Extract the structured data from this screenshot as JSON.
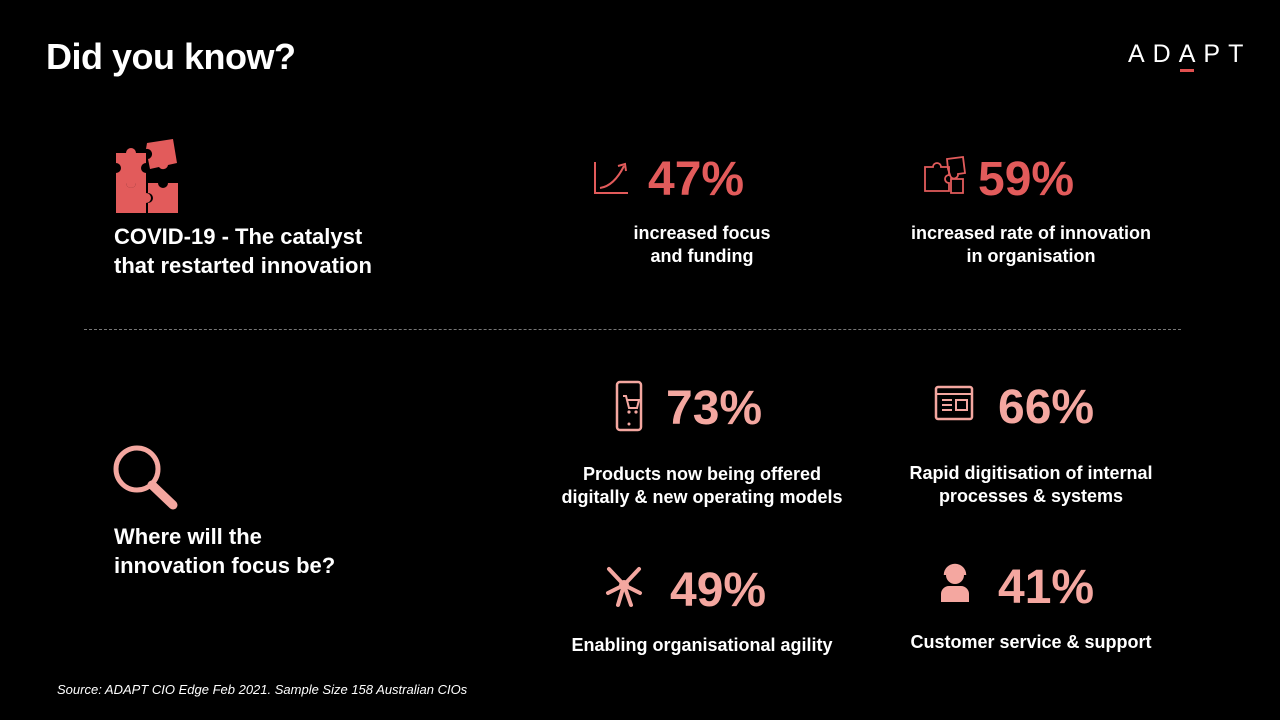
{
  "header": {
    "title": "Did you know?",
    "logo": "ADAPT"
  },
  "section1": {
    "heading_line1": "COVID-19 - The catalyst",
    "heading_line2": "that restarted innovation",
    "stats": [
      {
        "value": "47%",
        "line1": "increased focus",
        "line2": "and funding",
        "icon": "trend-chart-icon"
      },
      {
        "value": "59%",
        "line1": "increased rate of innovation",
        "line2": "in organisation",
        "icon": "puzzle-icon"
      }
    ]
  },
  "section2": {
    "heading_line1": "Where will the",
    "heading_line2": "innovation focus be?",
    "stats": [
      {
        "value": "73%",
        "line1": "Products now being offered",
        "line2": "digitally & new operating models",
        "icon": "mobile-cart-icon"
      },
      {
        "value": "66%",
        "line1": "Rapid digitisation of internal",
        "line2": "processes & systems",
        "icon": "browser-window-icon"
      },
      {
        "value": "49%",
        "line1": "Enabling organisational agility",
        "icon": "arrows-converge-icon"
      },
      {
        "value": "41%",
        "line1": "Customer service & support",
        "icon": "headset-agent-icon"
      }
    ]
  },
  "footer": {
    "source": "Source: ADAPT  CIO Edge Feb 2021. Sample Size  158 Australian CIOs"
  },
  "colors": {
    "background": "#000000",
    "accent_red": "#e25b5b",
    "accent_pink": "#f4a7a0"
  }
}
